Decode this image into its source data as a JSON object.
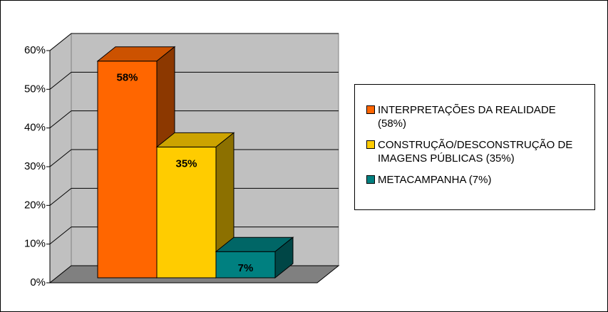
{
  "chart_data": {
    "type": "bar3d",
    "categories": [
      null
    ],
    "series": [
      {
        "name": "INTERPRETAÇÕES DA REALIDADE (58%)",
        "color": "#FF6600",
        "values": [
          58
        ],
        "value_labels": [
          "58%"
        ]
      },
      {
        "name": "CONSTRUÇÃO/DESCONSTRUÇÃO DE IMAGENS PÚBLICAS (35%)",
        "color": "#FFCC00",
        "values": [
          35
        ],
        "value_labels": [
          "35%"
        ]
      },
      {
        "name": "METACAMPANHA (7%)",
        "color": "#008080",
        "values": [
          7
        ],
        "value_labels": [
          "7%"
        ]
      }
    ],
    "ylim": [
      0,
      60
    ],
    "yticks": [
      {
        "value": 0,
        "label": "0%"
      },
      {
        "value": 10,
        "label": "10%"
      },
      {
        "value": 20,
        "label": "20%"
      },
      {
        "value": 30,
        "label": "30%"
      },
      {
        "value": 40,
        "label": "40%"
      },
      {
        "value": 50,
        "label": "50%"
      },
      {
        "value": 60,
        "label": "60%"
      }
    ],
    "grid": true,
    "legend": "right"
  }
}
